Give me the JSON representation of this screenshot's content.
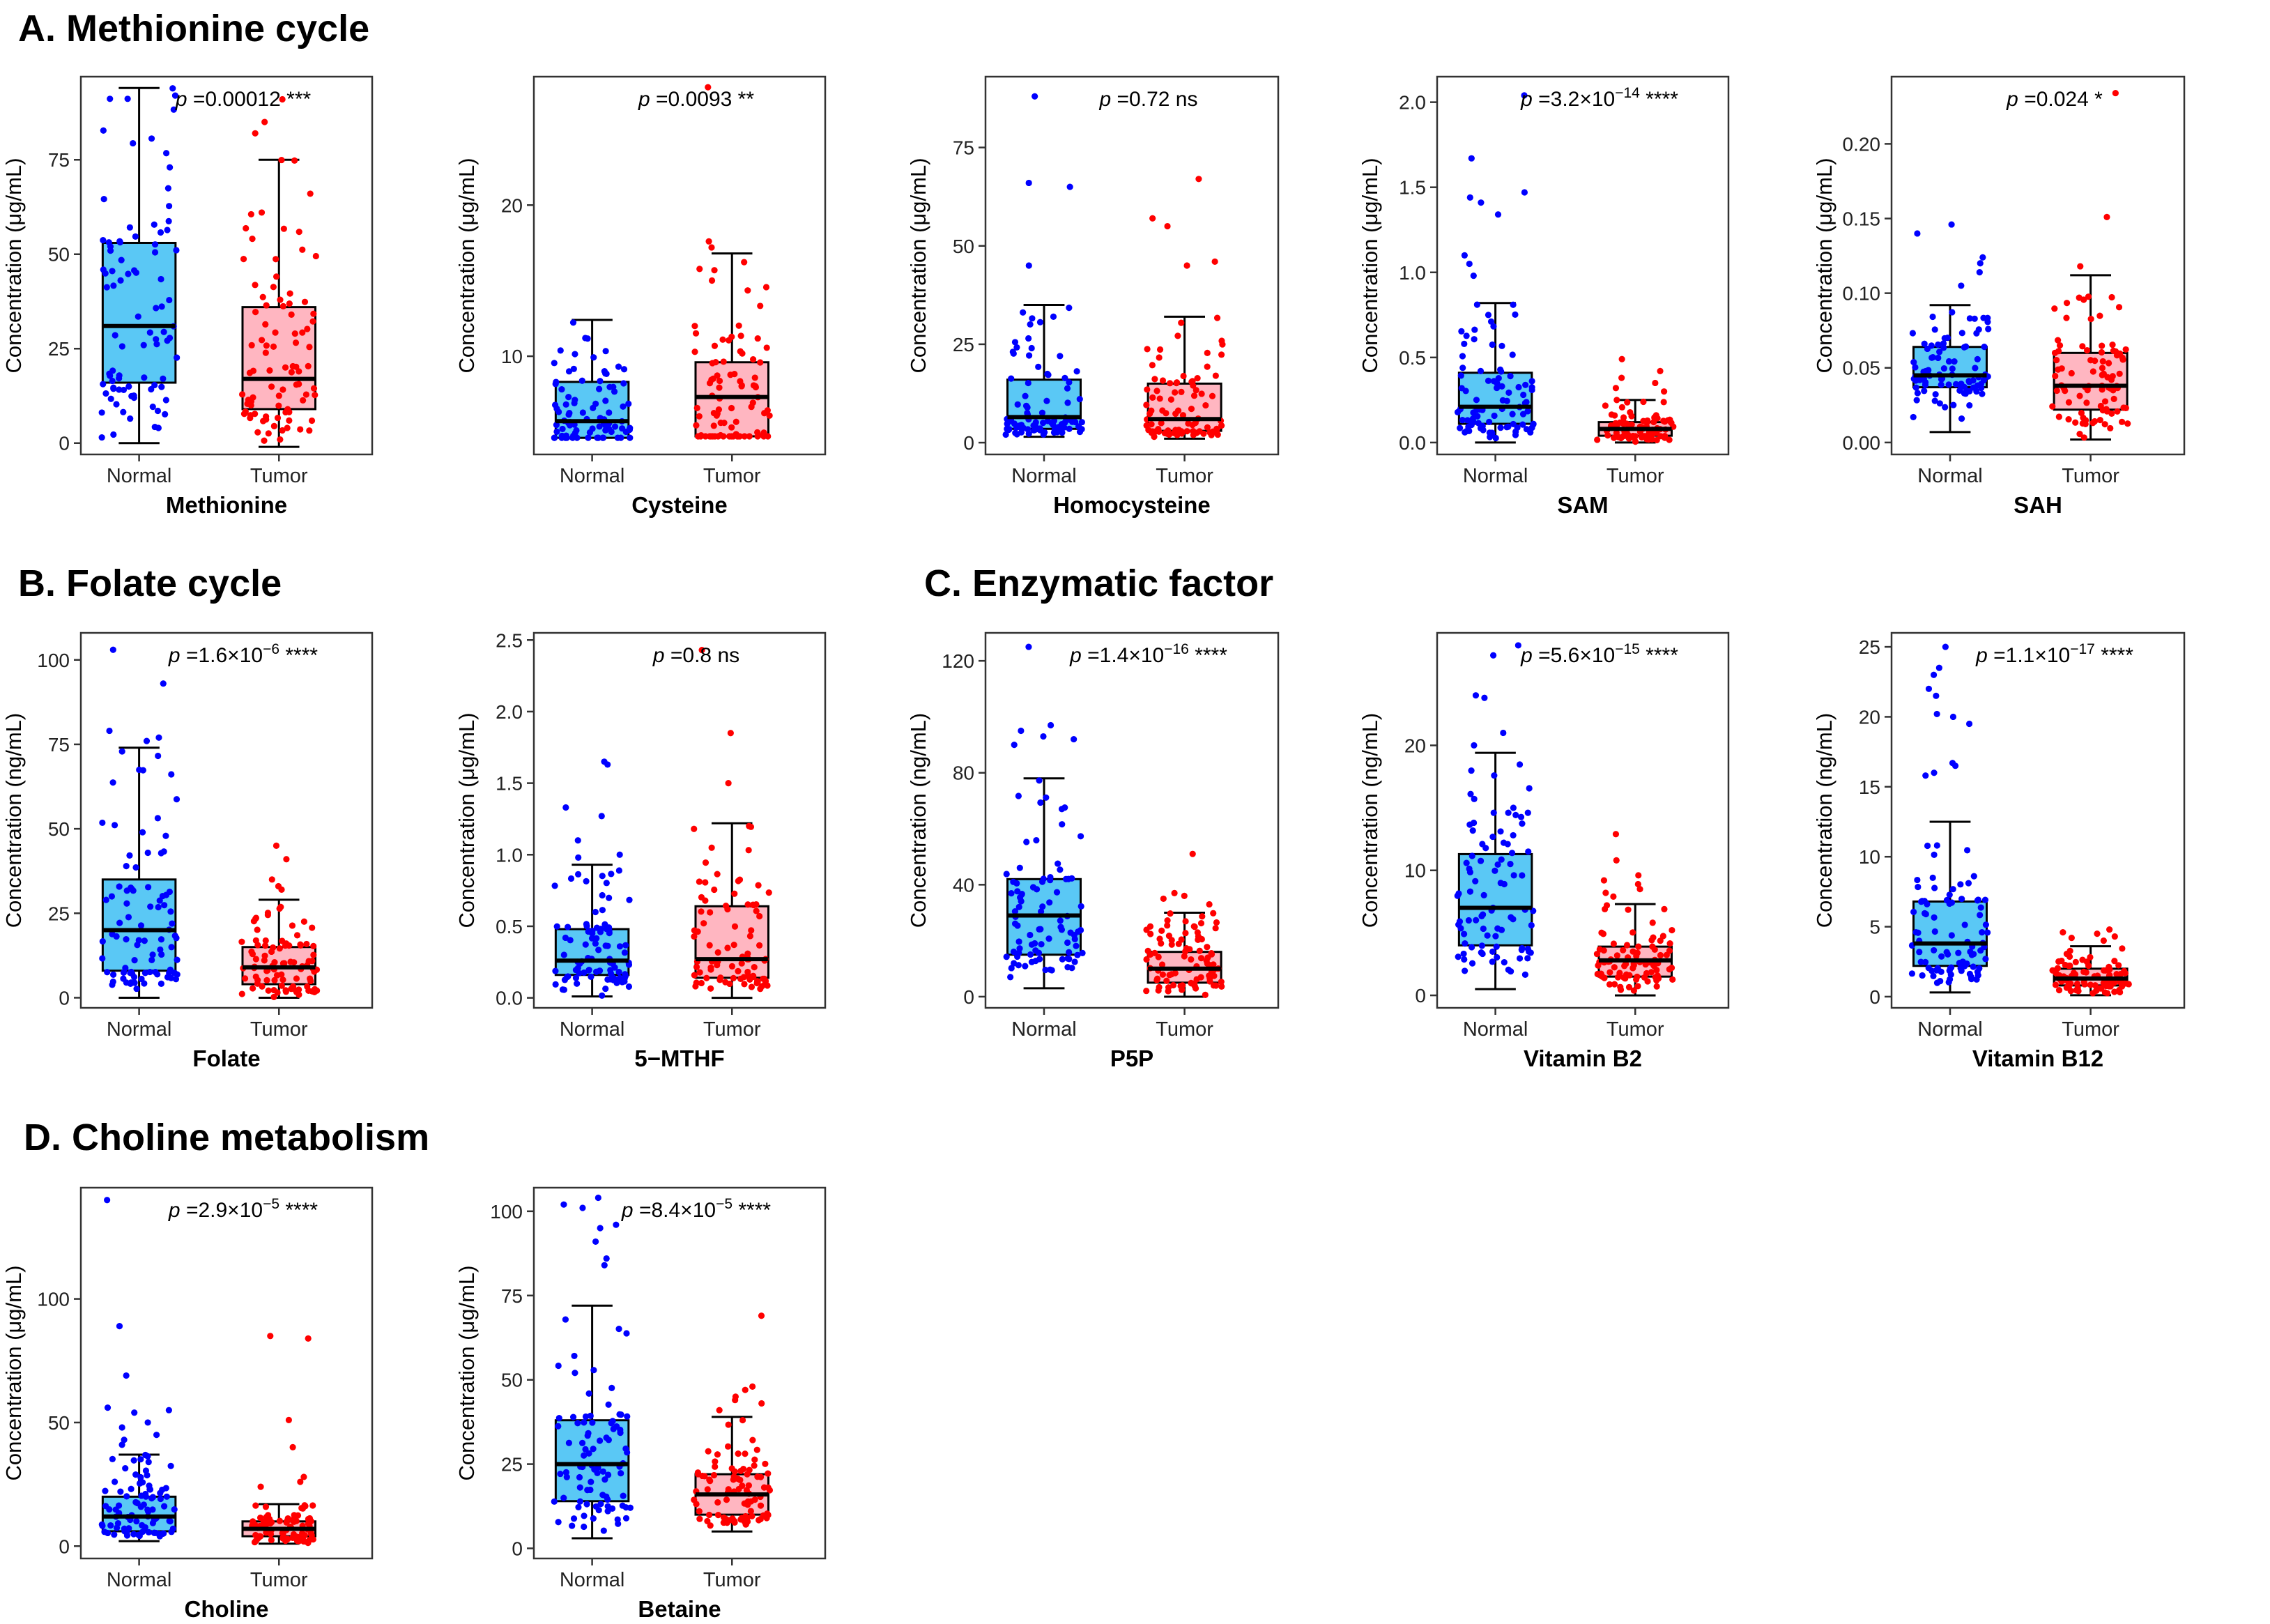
{
  "sections": {
    "a": "A. Methionine cycle",
    "b": "B. Folate cycle",
    "c": "C. Enzymatic factor",
    "d": "D. Choline metabolism"
  },
  "colors": {
    "normal_box": "#5AC8F5",
    "tumor_box": "#FFB6C1",
    "normal_point": "#0000FF",
    "tumor_point": "#FF0000"
  },
  "chart_data": [
    {
      "id": "methionine",
      "type": "box",
      "section": "A",
      "title": "Methionine",
      "ylabel": "Concentration (μg/mL)",
      "categories": [
        "Normal",
        "Tumor"
      ],
      "ylim": [
        -3,
        97
      ],
      "yticks": [
        0,
        25,
        50,
        75
      ],
      "p_value": "=0.00012",
      "p_sup": "",
      "significance": "***",
      "groups": [
        {
          "name": "Normal",
          "q1": 16,
          "median": 31,
          "q3": 53,
          "whisker_low": 0,
          "whisker_high": 94,
          "outliers": []
        },
        {
          "name": "Tumor",
          "q1": 9,
          "median": 17,
          "q3": 36,
          "whisker_low": -1,
          "whisker_high": 75,
          "outliers": [
            91,
            85,
            82
          ]
        }
      ]
    },
    {
      "id": "cysteine",
      "type": "box",
      "section": "A",
      "title": "Cysteine",
      "ylabel": "Concentration (μg/mL)",
      "categories": [
        "Normal",
        "Tumor"
      ],
      "ylim": [
        3.5,
        28.5
      ],
      "yticks": [
        10,
        20
      ],
      "p_value": "=0.0093",
      "p_sup": "",
      "significance": "**",
      "groups": [
        {
          "name": "Normal",
          "q1": 4.6,
          "median": 5.7,
          "q3": 8.3,
          "whisker_low": 4.6,
          "whisker_high": 12.4,
          "outliers": []
        },
        {
          "name": "Tumor",
          "q1": 4.7,
          "median": 7.3,
          "q3": 9.6,
          "whisker_low": 4.7,
          "whisker_high": 16.8,
          "outliers": [
            27.8,
            17.6,
            17.2
          ]
        }
      ]
    },
    {
      "id": "homocysteine",
      "type": "box",
      "section": "A",
      "title": "Homocysteine",
      "ylabel": "Concentration (μg/mL)",
      "categories": [
        "Normal",
        "Tumor"
      ],
      "ylim": [
        -3,
        93
      ],
      "yticks": [
        0,
        25,
        50,
        75
      ],
      "p_value": "=0.72",
      "p_sup": "",
      "significance": "ns",
      "groups": [
        {
          "name": "Normal",
          "q1": 3.5,
          "median": 6.5,
          "q3": 16,
          "whisker_low": 1.5,
          "whisker_high": 35,
          "outliers": [
            88,
            66,
            65,
            45
          ]
        },
        {
          "name": "Tumor",
          "q1": 3,
          "median": 6,
          "q3": 15,
          "whisker_low": 1,
          "whisker_high": 32,
          "outliers": [
            67,
            57,
            55,
            46,
            45
          ]
        }
      ]
    },
    {
      "id": "sam",
      "type": "box",
      "section": "A",
      "title": "SAM",
      "ylabel": "Concentration (μg/mL)",
      "categories": [
        "Normal",
        "Tumor"
      ],
      "ylim": [
        -0.07,
        2.15
      ],
      "yticks": [
        0.0,
        0.5,
        1.0,
        1.5,
        2.0
      ],
      "p_value": "=3.2×10",
      "p_sup": "−14",
      "significance": "****",
      "groups": [
        {
          "name": "Normal",
          "q1": 0.11,
          "median": 0.21,
          "q3": 0.41,
          "whisker_low": 0.0,
          "whisker_high": 0.82,
          "outliers": [
            2.04,
            1.67,
            1.47,
            1.44,
            1.41,
            1.34,
            1.1,
            1.05,
            0.98
          ]
        },
        {
          "name": "Tumor",
          "q1": 0.04,
          "median": 0.08,
          "q3": 0.12,
          "whisker_low": 0.0,
          "whisker_high": 0.25,
          "outliers": [
            0.49,
            0.42,
            0.38,
            0.35,
            0.32,
            0.3
          ]
        }
      ]
    },
    {
      "id": "sah",
      "type": "box",
      "section": "A",
      "title": "SAH",
      "ylabel": "Concentration (μg/mL)",
      "categories": [
        "Normal",
        "Tumor"
      ],
      "ylim": [
        -0.008,
        0.245
      ],
      "yticks": [
        0.0,
        0.05,
        0.1,
        0.15,
        0.2
      ],
      "p_value": "=0.024",
      "p_sup": "",
      "significance": "*",
      "groups": [
        {
          "name": "Normal",
          "q1": 0.037,
          "median": 0.045,
          "q3": 0.064,
          "whisker_low": 0.007,
          "whisker_high": 0.092,
          "outliers": [
            0.146,
            0.14,
            0.124,
            0.12,
            0.114,
            0.105
          ]
        },
        {
          "name": "Tumor",
          "q1": 0.022,
          "median": 0.038,
          "q3": 0.06,
          "whisker_low": 0.002,
          "whisker_high": 0.112,
          "outliers": [
            0.234,
            0.151,
            0.118
          ]
        }
      ]
    },
    {
      "id": "folate",
      "type": "box",
      "section": "B",
      "title": "Folate",
      "ylabel": "Concentration (ng/mL)",
      "categories": [
        "Normal",
        "Tumor"
      ],
      "ylim": [
        -3,
        108
      ],
      "yticks": [
        0,
        25,
        50,
        75,
        100
      ],
      "p_value": "=1.6×10",
      "p_sup": "−6",
      "significance": "****",
      "groups": [
        {
          "name": "Normal",
          "q1": 8,
          "median": 20,
          "q3": 35,
          "whisker_low": 0,
          "whisker_high": 74,
          "outliers": [
            103,
            93,
            79,
            77,
            76
          ]
        },
        {
          "name": "Tumor",
          "q1": 4,
          "median": 9,
          "q3": 15,
          "whisker_low": 0,
          "whisker_high": 29,
          "outliers": [
            45,
            41,
            35,
            33,
            32
          ]
        }
      ]
    },
    {
      "id": "mthf",
      "type": "box",
      "section": "B",
      "title": "5−MTHF",
      "ylabel": "Concentration (μg/mL)",
      "categories": [
        "Normal",
        "Tumor"
      ],
      "ylim": [
        -0.07,
        2.55
      ],
      "yticks": [
        0.0,
        0.5,
        1.0,
        1.5,
        2.0,
        2.5
      ],
      "p_value": "=0.8",
      "p_sup": "",
      "significance": "ns",
      "groups": [
        {
          "name": "Normal",
          "q1": 0.16,
          "median": 0.26,
          "q3": 0.48,
          "whisker_low": 0.01,
          "whisker_high": 0.93,
          "outliers": [
            1.65,
            1.63,
            1.33,
            1.27,
            1.1,
            1.0,
            0.98
          ]
        },
        {
          "name": "Tumor",
          "q1": 0.14,
          "median": 0.27,
          "q3": 0.64,
          "whisker_low": 0.0,
          "whisker_high": 1.22,
          "outliers": [
            2.43,
            1.85,
            1.5
          ]
        }
      ]
    },
    {
      "id": "p5p",
      "type": "box",
      "section": "C",
      "title": "P5P",
      "ylabel": "Concentration (ng/mL)",
      "categories": [
        "Normal",
        "Tumor"
      ],
      "ylim": [
        -4,
        130
      ],
      "yticks": [
        0,
        40,
        80,
        120
      ],
      "p_value": "=1.4×10",
      "p_sup": "−16",
      "significance": "****",
      "groups": [
        {
          "name": "Normal",
          "q1": 15,
          "median": 29,
          "q3": 42,
          "whisker_low": 3,
          "whisker_high": 78,
          "outliers": [
            125,
            97,
            95,
            93,
            92,
            90
          ]
        },
        {
          "name": "Tumor",
          "q1": 5,
          "median": 10,
          "q3": 16,
          "whisker_low": 0,
          "whisker_high": 30,
          "outliers": [
            51,
            37,
            36,
            35,
            33
          ]
        }
      ]
    },
    {
      "id": "b2",
      "type": "box",
      "section": "C",
      "title": "Vitamin B2",
      "ylabel": "Concentration (ng/mL)",
      "categories": [
        "Normal",
        "Tumor"
      ],
      "ylim": [
        -1,
        29
      ],
      "yticks": [
        0,
        10,
        20
      ],
      "p_value": "=5.6×10",
      "p_sup": "−15",
      "significance": "****",
      "groups": [
        {
          "name": "Normal",
          "q1": 4,
          "median": 7,
          "q3": 11.3,
          "whisker_low": 0.5,
          "whisker_high": 19.4,
          "outliers": [
            28,
            27.2,
            24,
            23.8,
            21,
            20
          ]
        },
        {
          "name": "Tumor",
          "q1": 1.5,
          "median": 2.8,
          "q3": 3.9,
          "whisker_low": 0,
          "whisker_high": 7.3,
          "outliers": [
            12.9,
            10.8,
            9.6,
            9.2,
            8.9,
            8.5,
            8.2,
            7.9
          ]
        }
      ]
    },
    {
      "id": "b12",
      "type": "box",
      "section": "C",
      "title": "Vitamin B12",
      "ylabel": "Concentration (ng/mL)",
      "categories": [
        "Normal",
        "Tumor"
      ],
      "ylim": [
        -0.8,
        26
      ],
      "yticks": [
        0,
        5,
        10,
        15,
        20,
        25
      ],
      "p_value": "=1.1×10",
      "p_sup": "−17",
      "significance": "****",
      "groups": [
        {
          "name": "Normal",
          "q1": 2.2,
          "median": 3.8,
          "q3": 6.8,
          "whisker_low": 0.3,
          "whisker_high": 12.5,
          "outliers": [
            25,
            23.5,
            23,
            22,
            21.5,
            20.2,
            20,
            19.5,
            16.7,
            16.5,
            16,
            15.8
          ]
        },
        {
          "name": "Tumor",
          "q1": 0.8,
          "median": 1.3,
          "q3": 2.0,
          "whisker_low": 0.1,
          "whisker_high": 3.6,
          "outliers": [
            4.8,
            4.6,
            4.5,
            4.3,
            4.2,
            4.0
          ]
        }
      ]
    },
    {
      "id": "choline",
      "type": "box",
      "section": "D",
      "title": "Choline",
      "ylabel": "Concentration (μg/mL)",
      "categories": [
        "Normal",
        "Tumor"
      ],
      "ylim": [
        -5,
        145
      ],
      "yticks": [
        0,
        50,
        100
      ],
      "p_value": "=2.9×10",
      "p_sup": "−5",
      "significance": "****",
      "groups": [
        {
          "name": "Normal",
          "q1": 6,
          "median": 12,
          "q3": 20,
          "whisker_low": 2,
          "whisker_high": 37,
          "outliers": [
            140,
            89,
            69,
            56,
            55,
            54,
            50,
            48,
            45,
            43,
            41
          ]
        },
        {
          "name": "Tumor",
          "q1": 4,
          "median": 7,
          "q3": 10,
          "whisker_low": 1,
          "whisker_high": 17,
          "outliers": [
            85,
            84,
            51,
            40,
            28,
            26,
            24
          ]
        }
      ]
    },
    {
      "id": "betaine",
      "type": "box",
      "section": "D",
      "title": "Betaine",
      "ylabel": "Concentration (μg/mL)",
      "categories": [
        "Normal",
        "Tumor"
      ],
      "ylim": [
        -3,
        107
      ],
      "yticks": [
        0,
        25,
        50,
        75,
        100
      ],
      "p_value": "=8.4×10",
      "p_sup": "−5",
      "significance": "****",
      "groups": [
        {
          "name": "Normal",
          "q1": 14,
          "median": 25,
          "q3": 38,
          "whisker_low": 3,
          "whisker_high": 72,
          "outliers": [
            104,
            102,
            101,
            96,
            95,
            91,
            86,
            84
          ]
        },
        {
          "name": "Tumor",
          "q1": 10,
          "median": 16,
          "q3": 22,
          "whisker_low": 5,
          "whisker_high": 39,
          "outliers": [
            69,
            48,
            47,
            45,
            44,
            43,
            41
          ]
        }
      ]
    }
  ]
}
